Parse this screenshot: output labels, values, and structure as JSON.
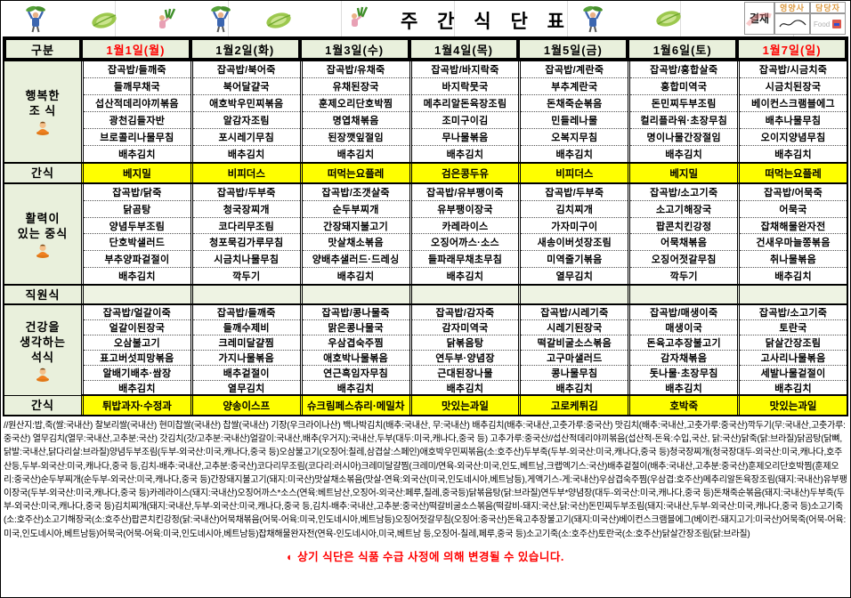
{
  "title": "주 간 식 단 표",
  "approval": {
    "label": "결재",
    "signers": [
      "영양사",
      "담당자"
    ]
  },
  "colors": {
    "highlight_yellow": "#ffff00",
    "header_green": "#e9f0dc",
    "date_red": "#ff0000"
  },
  "header": {
    "category": "구분",
    "days": [
      {
        "label": "1월1일(월)",
        "red": true
      },
      {
        "label": "1월2일(화)",
        "red": false
      },
      {
        "label": "1월3일(수)",
        "red": false
      },
      {
        "label": "1월4일(목)",
        "red": false
      },
      {
        "label": "1월5일(금)",
        "red": false
      },
      {
        "label": "1월6일(토)",
        "red": false
      },
      {
        "label": "1월7일(일)",
        "red": true
      }
    ]
  },
  "sections": [
    {
      "id": "breakfast",
      "type": "menu",
      "icon": "monk",
      "label_lines": [
        "행복한",
        "조 식"
      ],
      "days": [
        [
          "잡곡밥/들깨죽",
          "들깨무채국",
          "섭산적데리야끼볶음",
          "광천김들자반",
          "브로콜리나물무침",
          "배추김치"
        ],
        [
          "잡곡밥/북어죽",
          "북어달걀국",
          "애호박우민찌볶음",
          "알감자조림",
          "포시레기무침",
          "배추김치"
        ],
        [
          "잡곡밥/유채죽",
          "유채된장국",
          "훈제오리단호박찜",
          "명엽채볶음",
          "된장깻잎절임",
          "배추김치"
        ],
        [
          "잡곡밥/바지락죽",
          "바지락뭇국",
          "메추리알돈육장조림",
          "조미구이김",
          "무나물볶음",
          "배추김치"
        ],
        [
          "잡곡밥/계란죽",
          "부추계란국",
          "돈채죽순볶음",
          "민들레나물",
          "오복지무침",
          "배추김치"
        ],
        [
          "잡곡밥/홍합살죽",
          "홍합미역국",
          "돈민찌두부조림",
          "컬리플라워·초장무침",
          "명이나물간장절임",
          "배추김치"
        ],
        [
          "잡곡밥/시금치죽",
          "시금치된장국",
          "베이컨스크램블에그",
          "배추나물무침",
          "오이지양념무침",
          "배추김치"
        ]
      ]
    },
    {
      "id": "snack1",
      "type": "snack",
      "label_lines": [
        "간식"
      ],
      "items": [
        "베지밀",
        "비피더스",
        "떠먹는요플레",
        "검은콩두유",
        "비피더스",
        "베지밀",
        "떠먹는요플레"
      ]
    },
    {
      "id": "lunch",
      "type": "menu",
      "icon": "monk",
      "label_lines": [
        "활력이",
        "있는 중식"
      ],
      "days": [
        [
          "잡곡밥/닭죽",
          "닭곰탕",
          "양념두부조림",
          "단호박샐러드",
          "부추양파겉절이",
          "배추김치"
        ],
        [
          "잡곡밥/두부죽",
          "청국장찌개",
          "코다리무조림",
          "청포묵김가루무침",
          "시금치나물무침",
          "깍두기"
        ],
        [
          "잡곡밥/조갯살죽",
          "순두부찌개",
          "간장돼지불고기",
          "맛살채소볶음",
          "양배추샐러드·드레싱",
          "배추김치"
        ],
        [
          "잡곡밥/유부팽이죽",
          "유부팽이장국",
          "카레라이스",
          "오징어까스·소스",
          "들파래무채초무침",
          "배추김치"
        ],
        [
          "잡곡밥/두부죽",
          "김치찌개",
          "가자미구이",
          "새송이버섯장조림",
          "미역줄기볶음",
          "열무김치"
        ],
        [
          "잡곡밥/소고기죽",
          "소고기해장국",
          "팝콘치킨강정",
          "어묵채볶음",
          "오징어젓갈무침",
          "깍두기"
        ],
        [
          "잡곡밥/어묵죽",
          "어묵국",
          "잡채해물완자전",
          "건새우마늘쫑볶음",
          "취나물볶음",
          "배추김치"
        ]
      ]
    },
    {
      "id": "staff",
      "type": "staff",
      "label_lines": [
        "직원식"
      ]
    },
    {
      "id": "dinner",
      "type": "menu",
      "icon": "monk",
      "label_lines": [
        "건강을",
        "생각하는",
        "석식"
      ],
      "days": [
        [
          "잡곡밥/얼갈이죽",
          "얼갈이된장국",
          "오삼불고기",
          "표고버섯피망볶음",
          "알배기배추·쌈장",
          "배추김치"
        ],
        [
          "잡곡밥/들깨죽",
          "들깨수제비",
          "크레미달걀찜",
          "가지나물볶음",
          "배추겉절이",
          "열무김치"
        ],
        [
          "잡곡밥/콩나물죽",
          "맑은콩나물국",
          "우삼겹숙주찜",
          "애호박나물볶음",
          "연근흑임자무침",
          "배추김치"
        ],
        [
          "잡곡밥/감자죽",
          "감자미역국",
          "닭볶음탕",
          "연두부·양념장",
          "근대된장나물",
          "배추김치"
        ],
        [
          "잡곡밥/시레기죽",
          "시레기된장국",
          "떡갈비굴소스볶음",
          "고구마샐러드",
          "콩나물무침",
          "배추김치"
        ],
        [
          "잡곡밥/매생이죽",
          "매생이국",
          "돈육고추장불고기",
          "감자채볶음",
          "돗나물·초장무침",
          "배추김치"
        ],
        [
          "잡곡밥/소고기죽",
          "토란국",
          "닭살간장조림",
          "고사리나물볶음",
          "세발나물겉절이",
          "배추김치"
        ]
      ]
    },
    {
      "id": "snack2",
      "type": "snack",
      "label_lines": [
        "간식"
      ],
      "items": [
        "튀밥과자·수정과",
        "양송이스프",
        "슈크림페스츄리·메밀차",
        "맛있는과일",
        "고로케튀김",
        "호박죽",
        "맛있는과일"
      ]
    }
  ],
  "origin_note": "//원산지:밥,죽(쌀:국내산) 찰보리쌀(국내산) 현미찹쌀(국내산) 찹쌀(국내산) 기장(우크라이나산) 백나박김치(배추:국내산, 무:국내산) 배추김치(배추:국내산,고춧가루:중국산) 맛김치(배추:국내산,고춧가루:중국산)깍두기(무:국내산,고춧가루:중국산) 열무김치(열무:국내산,고추분:국산) 갓김치(갓/고추분:국내산)얼갈이:국내산,배추(우거지):국내산,두부(대두:미국,캐나다,중국 등) 고추가루:중국산//섭산적데리야끼볶음(섭산적-돈육:수입,국산, 닭:국산)닭죽(닭:브라질)닭곰탕(닭뼈,닭발:국내산,닭다리살:브라질)양념두부조림(두부-외국산:미국,캐나다,중국 등)오삼불고기(오징어:칠레,삼겹살:스페인)애호박우민찌볶음(소:호주산)두부죽(두부-외국산:미국,캐나다,중국 등)청국장찌개(청국장대두-외국산:미국,캐나다,호주산등,두부-외국산:미국,캐나다,중국 등,김치-배추:국내산,고추분:중국산)코다리무조림(코다리:러시아)크레미달걀찜(크레미/연육-외국산:미국,인도,베트남,크랩엑기스:국산)배추겉절이(배추:국내산,고추분:중국산)훈제오리단호박찜(훈제오리:중국산)순두부찌개(순두부-외국산:미국,캐나다,중국 등)간장돼지불고기(돼지:미국산)맛살채소볶음(맛살-연육:외국산(미국,인도네시아,베트남등),게액기스-게:국내산)우삼겹숙주찜(우삼겹:호주산)메추리알돈육장조림(돼지:국내산)유부팽이장국(두부-외국산:미국,캐나다,중국 등)카레라이스(돼지:국내산)오징어까스*소스(연육:베트남산,오징어-외국산:페루,칠레,중국등)닭볶음탕(닭:브라질)연두부*양념장(대두-외국산:미국,캐나다,중국 등)돈채죽순볶음(돼지:국내산)두부죽(두부-외국산:미국,캐나다,중국 등)김치찌개(돼지:국내산,두부-외국산:미국,캐나다,중국 등,김치-배추:국내산,고추분:중국산)떡갈비굴소스볶음(떡갈비-돼지:국산,닭:국산)돈민찌두부조림(돼지:국내산,두부-외국산:미국,캐나다,중국 등)소고기죽(소:호주산)소고기해장국(소:호주산)팝콘치킨강정(닭:국내산)어묵채볶음(어묵-어육:미국,인도네시아,베트남등)오징어젓갈무침(오징어:중국산)돈육고추장불고기(돼지:미국산)베이컨스크램블에그(베이컨-돼지고기:미국산)어묵죽(어묵-어육:미국,인도네시아,베트남등)어묵국(어묵-어육:미국,인도네시아,베트남등)잡채해물완자전(연육-인도네시아,미국,베트남 등,오징어-칠레,페루,중국 등)소고기죽(소:호주산)토란국(소:호주산)닭살간장조림(닭:브라질)",
  "footer": "◐ 상기 식단은 식품 수급 사정에 의해 변경될 수 있습니다."
}
